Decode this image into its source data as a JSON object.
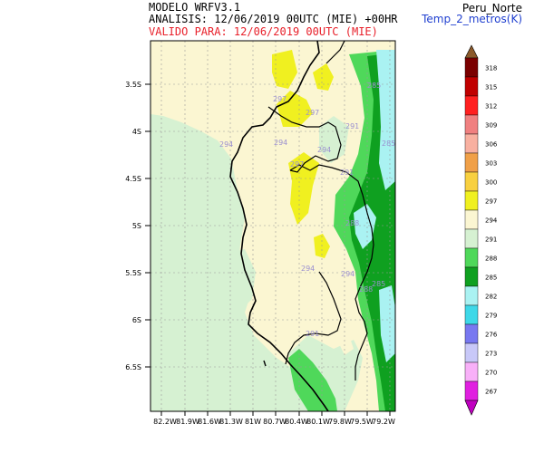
{
  "header": {
    "model": "MODELO WRFV3.1",
    "analysis": "ANALISIS: 12/06/2019 00UTC (MIE) +00HR",
    "valid": "VALIDO PARA: 12/06/2019 00UTC (MIE)",
    "region": "Peru_Norte",
    "variable": "Temp_2_metros(K)"
  },
  "map": {
    "lat_ticks": [
      "3.5S",
      "4S",
      "4.5S",
      "5S",
      "5.5S",
      "6S",
      "6.5S"
    ],
    "lon_ticks": [
      "82.2W",
      "81.9W",
      "81.6W",
      "81.3W",
      "81W",
      "80.7W",
      "80.4W",
      "80.1W",
      "79.8W",
      "79.5W",
      "79.2W"
    ],
    "contour_labels": [
      "297",
      "297",
      "294",
      "294",
      "297",
      "294",
      "291",
      "291",
      "294",
      "288",
      "285",
      "285",
      "285",
      "288",
      "294",
      "291"
    ]
  },
  "colorbar": {
    "levels": [
      "318",
      "315",
      "312",
      "309",
      "306",
      "303",
      "300",
      "297",
      "294",
      "291",
      "288",
      "285",
      "282",
      "279",
      "276",
      "273",
      "270",
      "267"
    ],
    "colors": [
      "#7a0000",
      "#c00000",
      "#ff2020",
      "#f08080",
      "#f8b0a0",
      "#f0a048",
      "#f8d040",
      "#f0f020",
      "#fbf6d2",
      "#d6f1d2",
      "#4fd85a",
      "#0fa020",
      "#aaf2f2",
      "#3ed8e8",
      "#7878f0",
      "#c8c8f8",
      "#f8b0f8",
      "#e020e0"
    ],
    "top_color": "#8b5a2b",
    "bottom_color": "#c000c0"
  }
}
